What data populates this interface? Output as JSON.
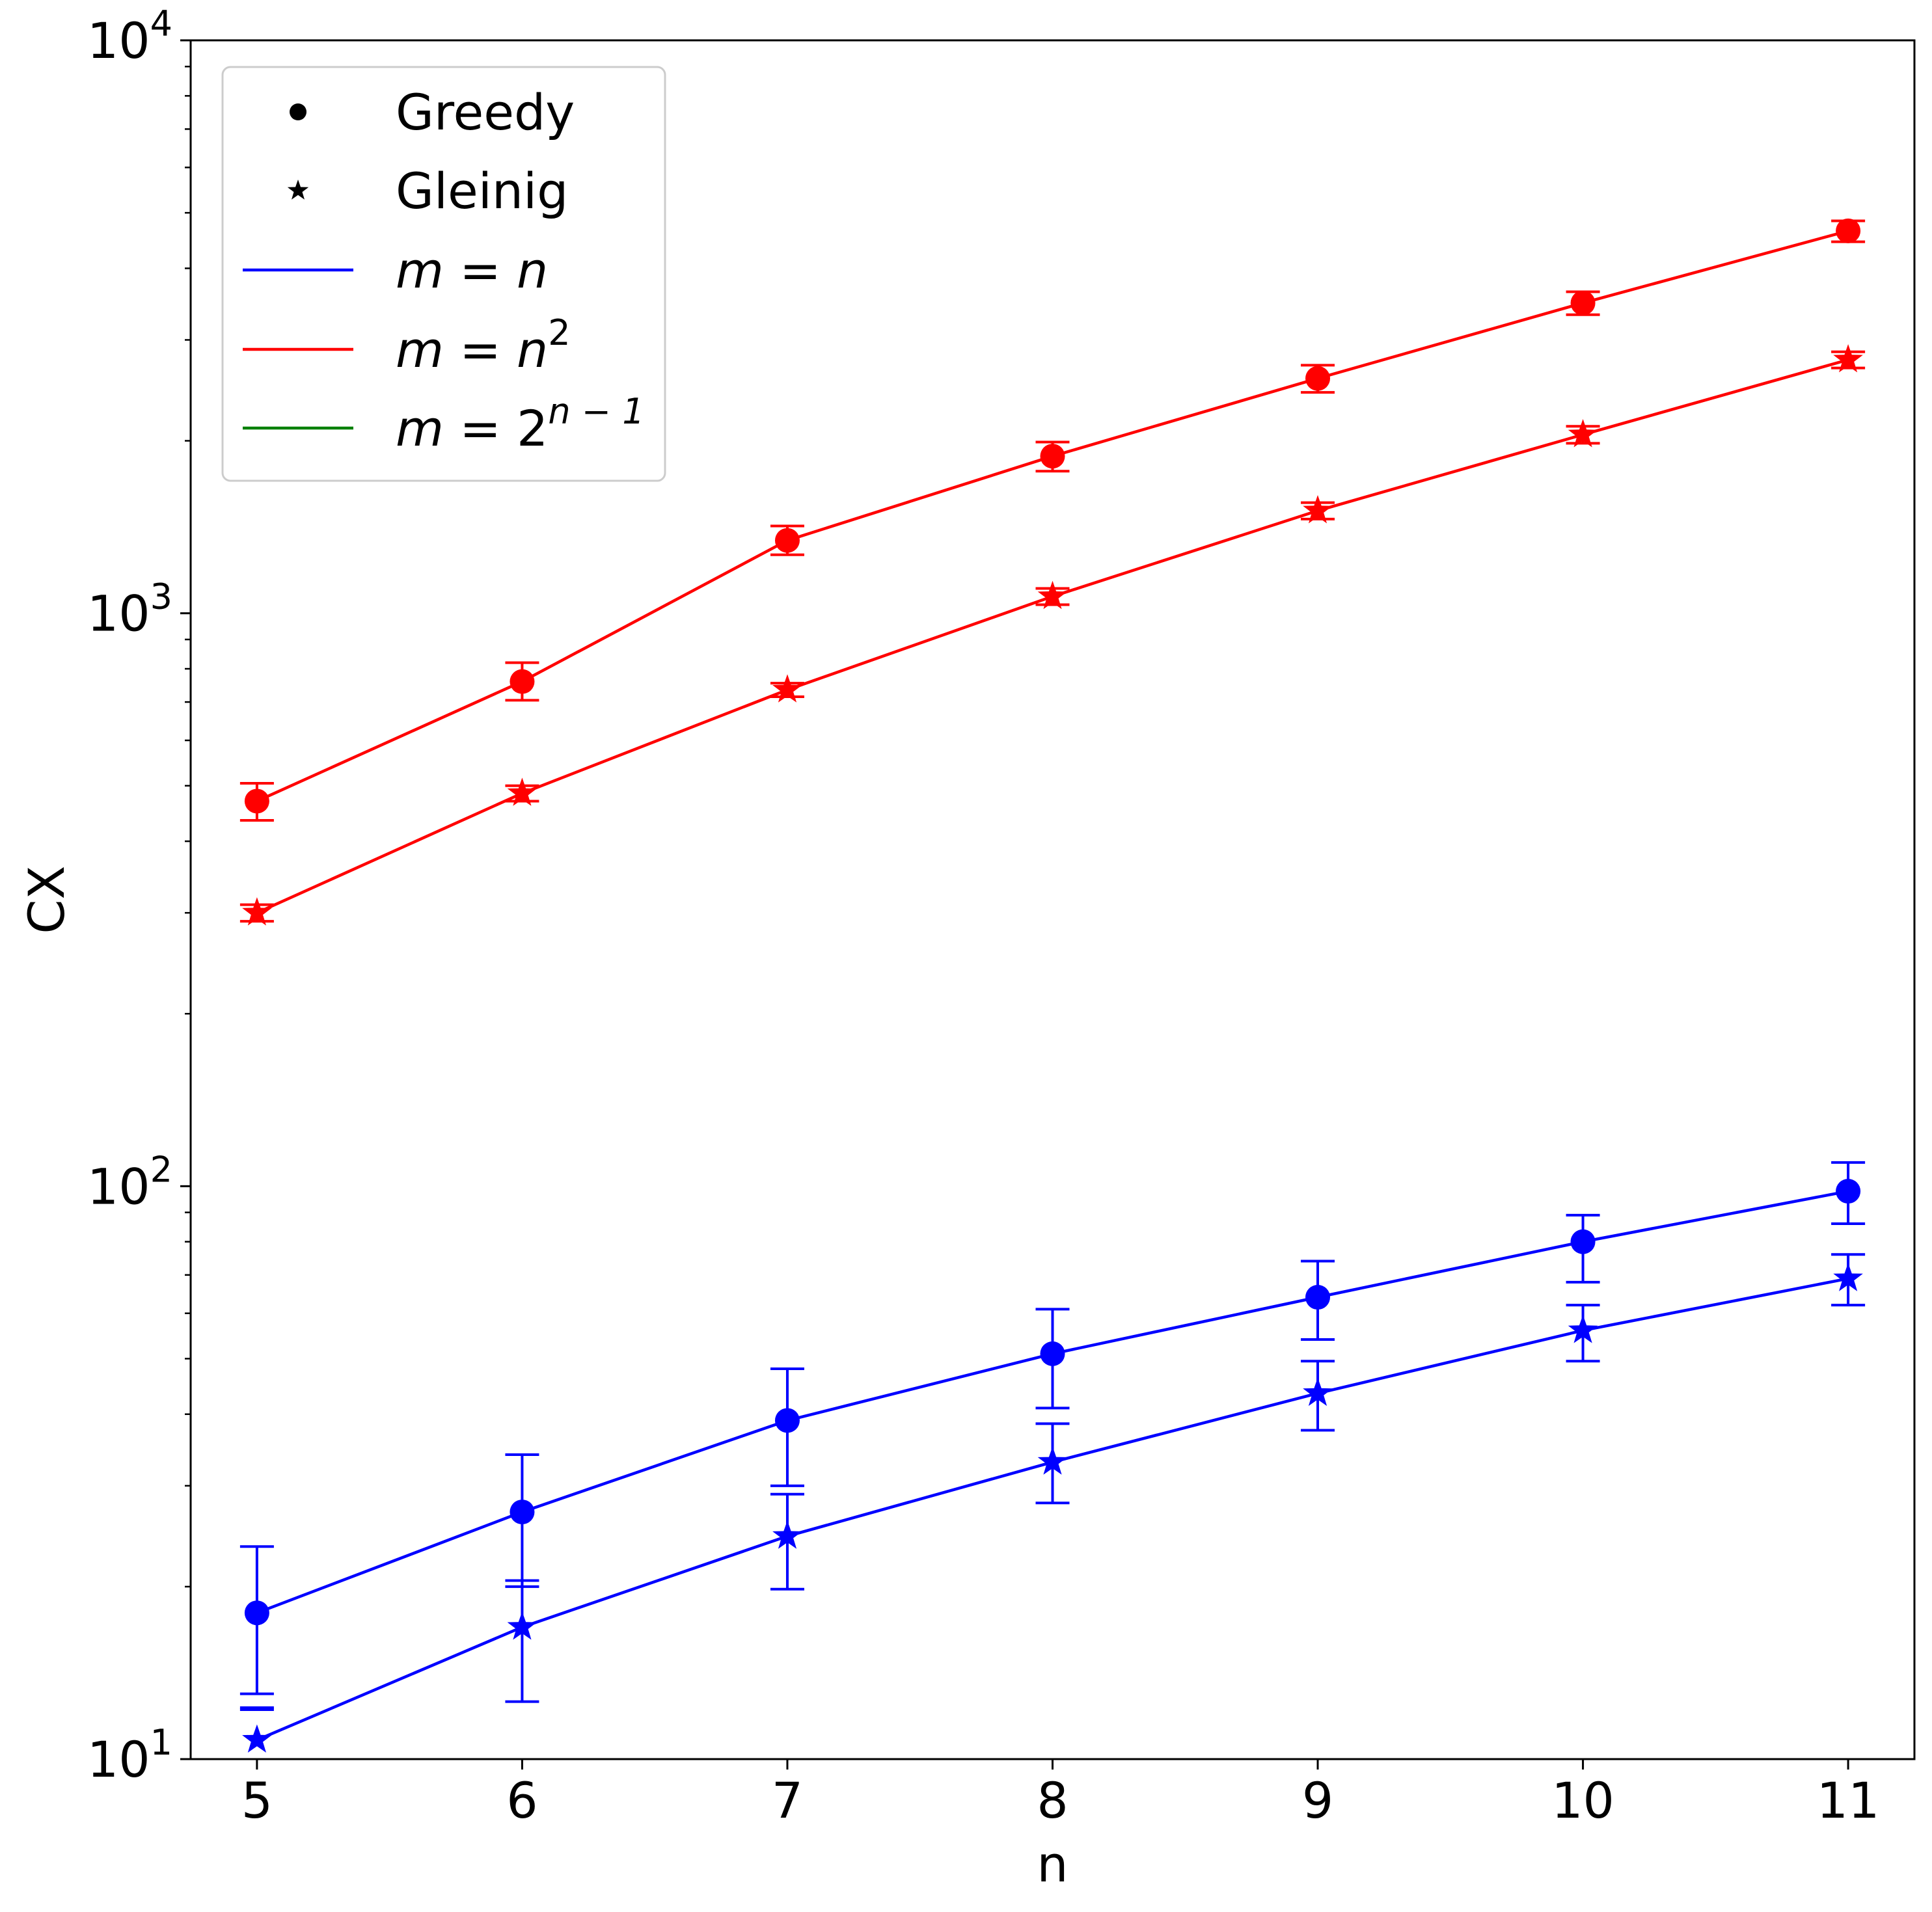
{
  "chart_data": {
    "type": "line",
    "xlabel": "n",
    "ylabel": "CX",
    "yscale": "log",
    "xlim": [
      4.75,
      11.25
    ],
    "ylim": [
      10,
      10000
    ],
    "x": [
      5,
      6,
      7,
      8,
      9,
      10,
      11
    ],
    "xtick_labels": [
      "5",
      "6",
      "7",
      "8",
      "9",
      "10",
      "11"
    ],
    "ytick_labels": [
      {
        "value": 10,
        "base": "10",
        "exp": "1"
      },
      {
        "value": 100,
        "base": "10",
        "exp": "2"
      },
      {
        "value": 1000,
        "base": "10",
        "exp": "3"
      },
      {
        "value": 10000,
        "base": "10",
        "exp": "4"
      }
    ],
    "legend": {
      "placement": "top-left",
      "entries": [
        {
          "label": "Greedy",
          "kind": "marker",
          "marker": "circle",
          "color": "#000000"
        },
        {
          "label": "Gleinig",
          "kind": "marker",
          "marker": "star",
          "color": "#000000"
        },
        {
          "label": "m = n",
          "kind": "line",
          "color": "#0000ff",
          "math": {
            "lhs": "m",
            "rhs": "n",
            "sup": ""
          }
        },
        {
          "label": "m = n^2",
          "kind": "line",
          "color": "#ff0000",
          "math": {
            "lhs": "m",
            "rhs": "n",
            "sup": "2"
          }
        },
        {
          "label": "m = 2^(n-1)",
          "kind": "line",
          "color": "#008000",
          "math": {
            "lhs": "m",
            "rhs": "2",
            "sup": "n − 1"
          }
        }
      ]
    },
    "series": [
      {
        "group": "m = n^2",
        "method": "Greedy",
        "color": "#ff0000",
        "marker": "circle",
        "values": [
          470,
          760,
          1340,
          1880,
          2570,
          3480,
          4650
        ],
        "err_low": [
          435,
          705,
          1265,
          1770,
          2430,
          3320,
          4450
        ],
        "err_high": [
          505,
          820,
          1420,
          1990,
          2710,
          3640,
          4840
        ]
      },
      {
        "group": "m = n^2",
        "method": "Gleinig",
        "color": "#ff0000",
        "marker": "star",
        "values": [
          300,
          485,
          735,
          1070,
          1510,
          2050,
          2770
        ],
        "err_low": [
          290,
          470,
          715,
          1035,
          1460,
          1980,
          2680
        ],
        "err_high": [
          310,
          500,
          755,
          1105,
          1560,
          2120,
          2860
        ]
      },
      {
        "group": "m = n",
        "method": "Greedy",
        "color": "#0000ff",
        "marker": "circle",
        "values": [
          18,
          27,
          39,
          51,
          64,
          80,
          98
        ],
        "err_low": [
          13,
          20,
          30,
          41,
          54,
          68,
          86
        ],
        "err_high": [
          23.5,
          34,
          48,
          61,
          74,
          89,
          110
        ]
      },
      {
        "group": "m = n",
        "method": "Gleinig",
        "color": "#0000ff",
        "marker": "star",
        "values": [
          10.8,
          17,
          24.5,
          33,
          43.5,
          56,
          69
        ],
        "err_low": [
          12.2,
          12.6,
          19.8,
          28,
          37.5,
          49.5,
          62
        ],
        "err_high": [
          12.3,
          20.5,
          29,
          38.5,
          49.5,
          62,
          76
        ]
      }
    ]
  }
}
